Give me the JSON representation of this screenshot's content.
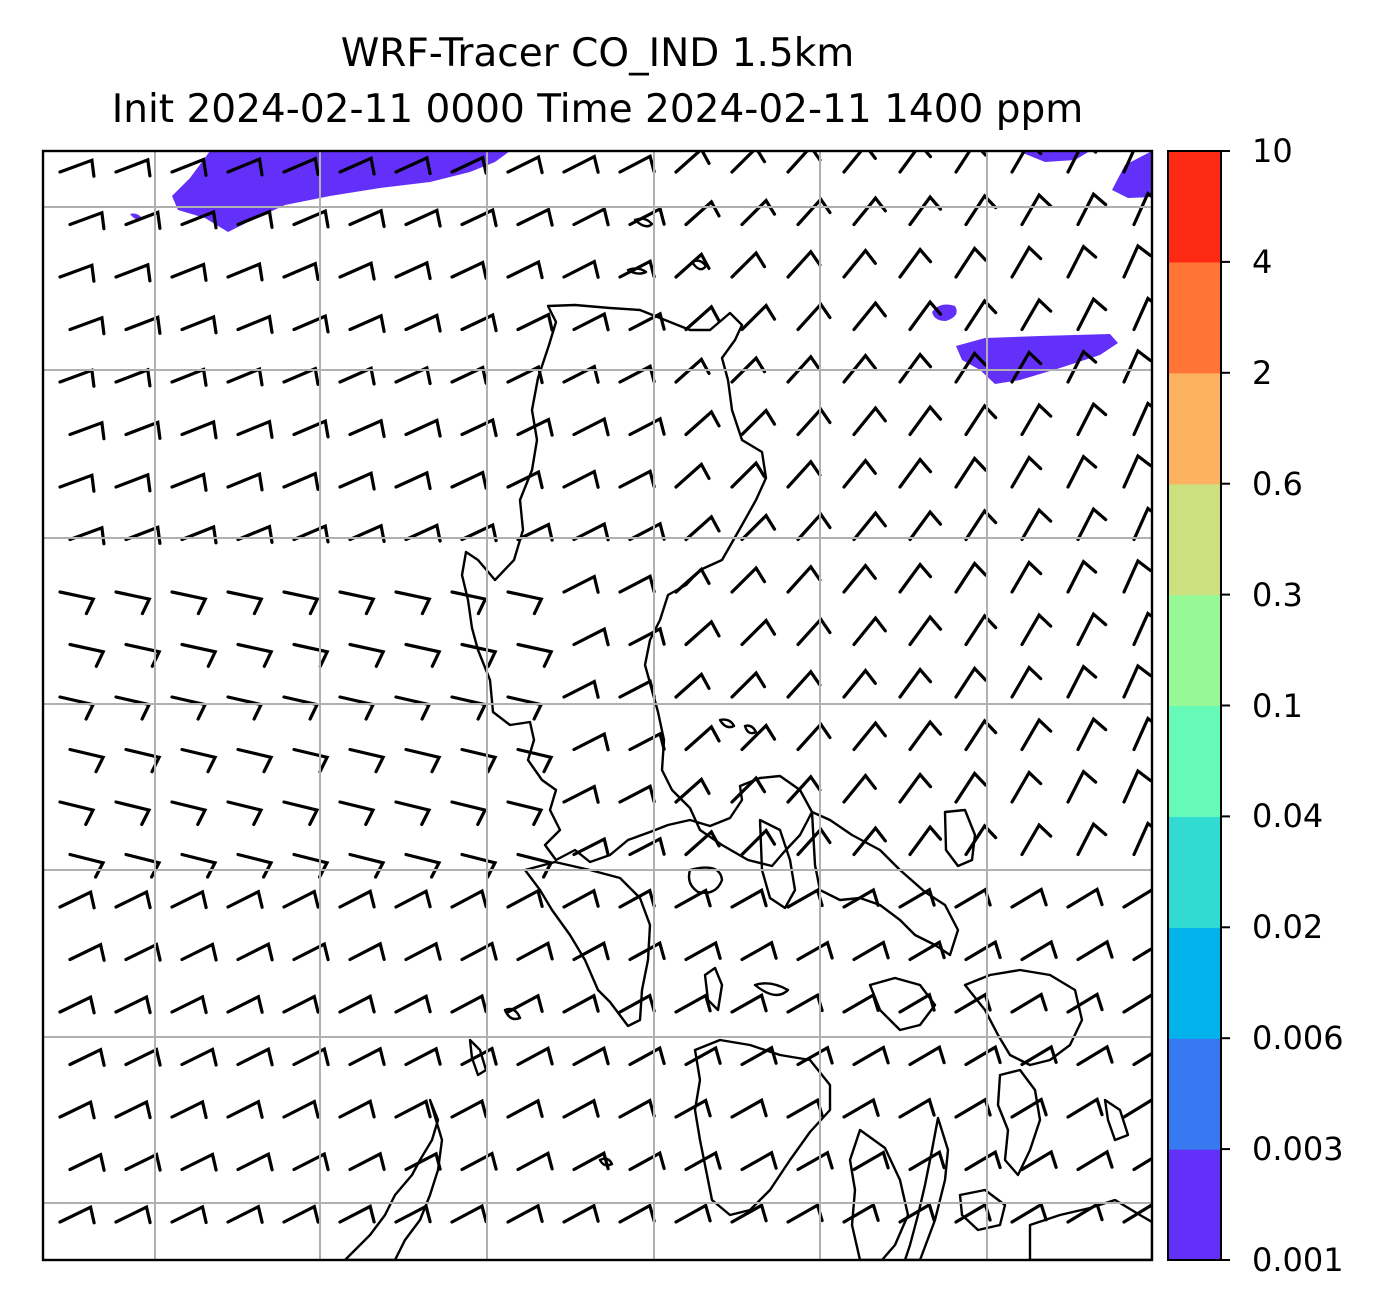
{
  "title": {
    "line1": "WRF-Tracer CO_IND 1.5km",
    "line2": "Init 2024-02-11 0000 Time 2024-02-11 1400 ppm"
  },
  "map": {
    "variable": "CO_IND tracer concentration",
    "overlay": "wind barbs",
    "gridlines": true,
    "coastlines": true
  },
  "colorbar": {
    "levels": [
      "0.001",
      "0.003",
      "0.006",
      "0.02",
      "0.04",
      "0.1",
      "0.3",
      "0.6",
      "2",
      "4",
      "10"
    ],
    "colors": [
      "#6330fa",
      "#3679f1",
      "#02b2eb",
      "#32dbd2",
      "#65fab8",
      "#96f996",
      "#cce07f",
      "#fdb261",
      "#ff7535",
      "#ff2a13"
    ]
  },
  "style": {
    "plume_color": "#6330fa",
    "grid_color": "#b0b0b0",
    "barb_color": "#000000"
  }
}
